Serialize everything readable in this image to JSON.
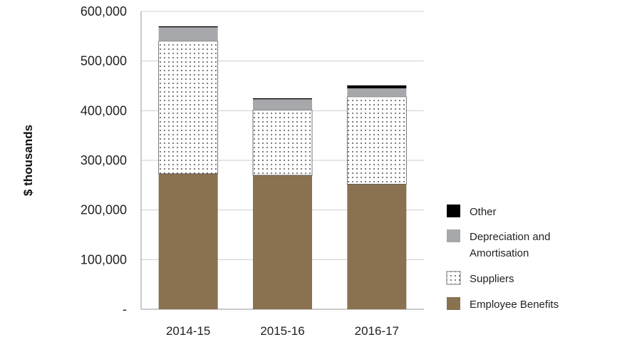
{
  "chart_data": {
    "type": "bar",
    "stacked": true,
    "categories": [
      "2014-15",
      "2015-16",
      "2016-17"
    ],
    "series": [
      {
        "name": "Employee Benefits",
        "values": [
          273000,
          270000,
          252000
        ],
        "color": "#8a7150",
        "pattern": "solid"
      },
      {
        "name": "Suppliers",
        "values": [
          267000,
          131000,
          176000
        ],
        "color": "#ffffff",
        "pattern": "dots"
      },
      {
        "name": "Depreciation and Amortisation",
        "values": [
          28000,
          22000,
          17000
        ],
        "color": "#a7a8ab",
        "pattern": "solid"
      },
      {
        "name": "Other",
        "values": [
          2000,
          2000,
          6000
        ],
        "color": "#000000",
        "pattern": "solid"
      }
    ],
    "ylabel": "$ thousands",
    "xlabel": "",
    "ylim": [
      0,
      600000
    ],
    "yticks": [
      "-",
      "100,000",
      "200,000",
      "300,000",
      "400,000",
      "500,000",
      "600,000"
    ],
    "grid": true,
    "legend_position": "right",
    "legend_order": [
      "Other",
      "Depreciation and Amortisation",
      "Suppliers",
      "Employee Benefits"
    ],
    "legend_lines": {
      "Other": [
        "Other"
      ],
      "Depreciation and Amortisation": [
        "Depreciation and",
        "Amortisation"
      ],
      "Suppliers": [
        "Suppliers"
      ],
      "Employee Benefits": [
        "Employee Benefits"
      ]
    }
  }
}
